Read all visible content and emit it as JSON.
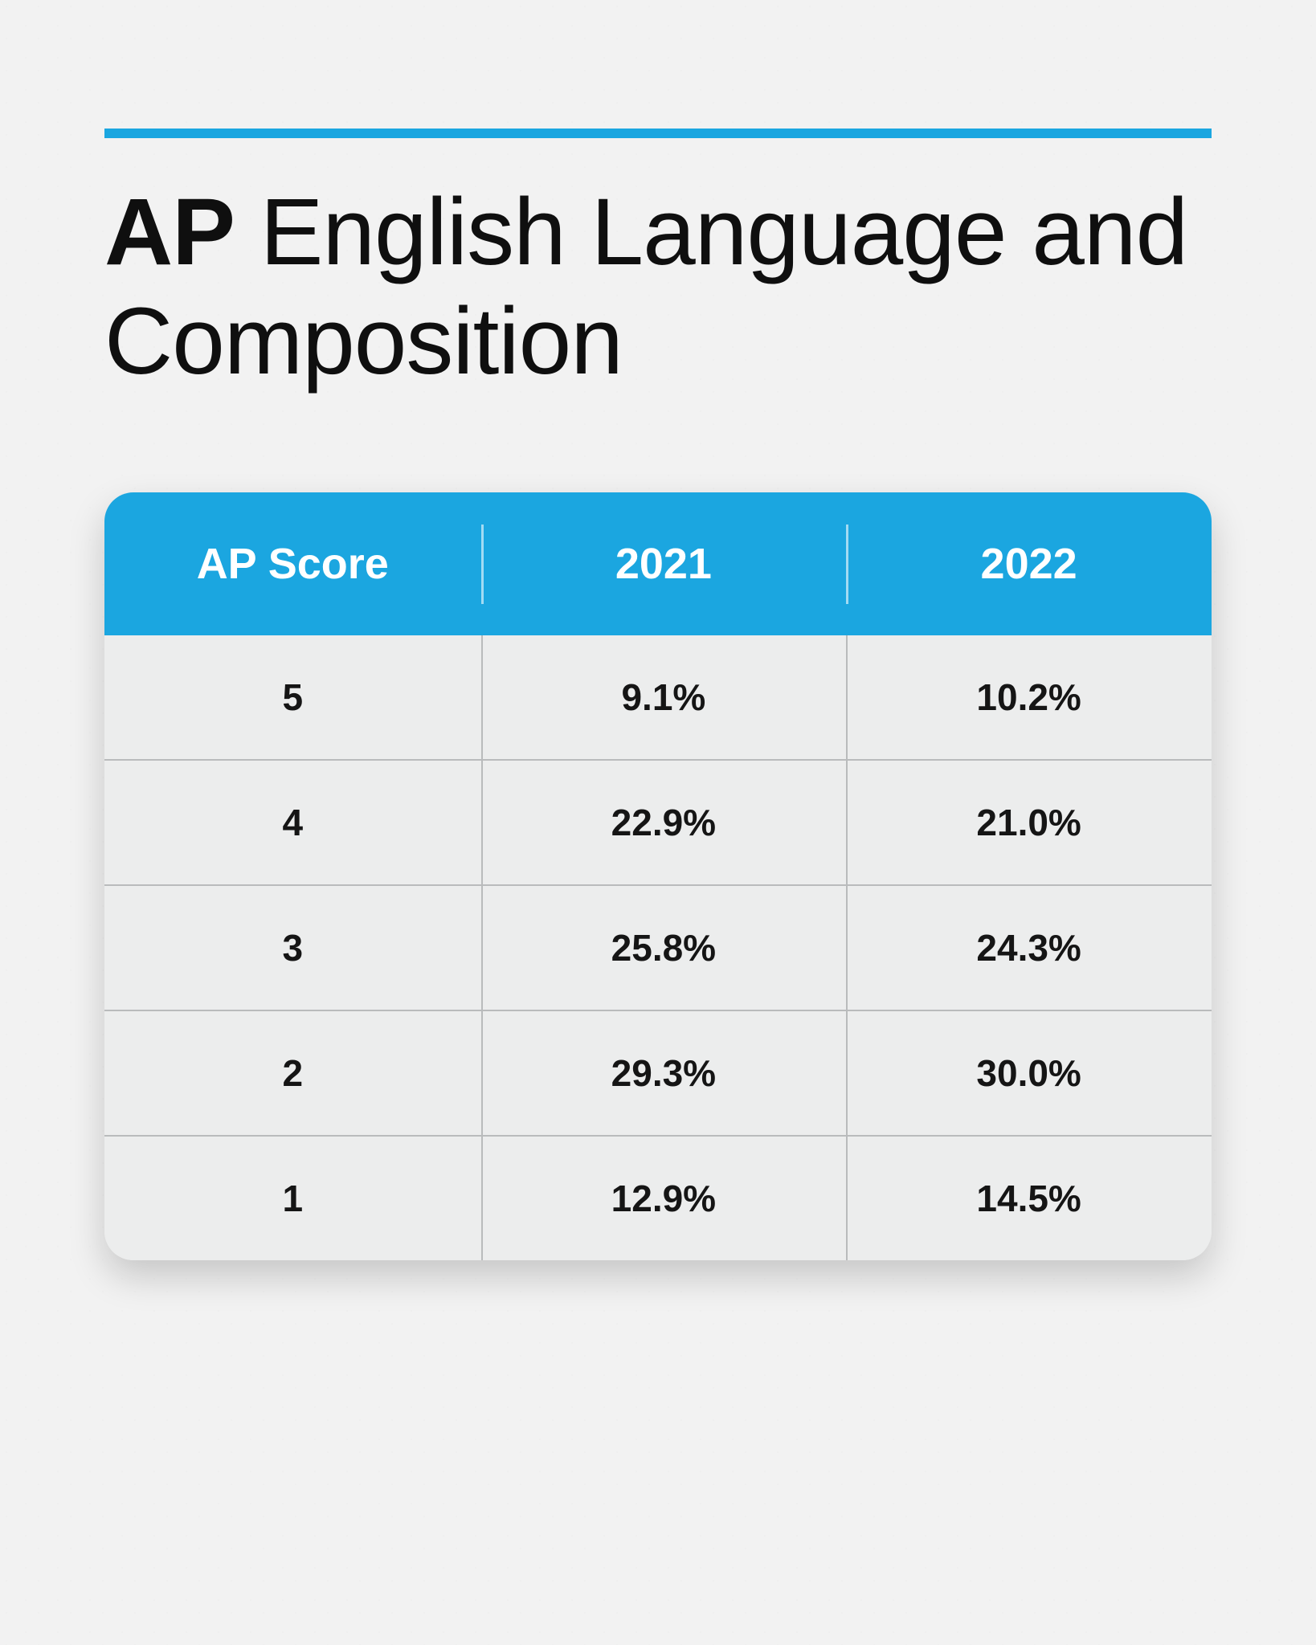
{
  "title": {
    "bold": "AP",
    "rest": " English Language and Composition"
  },
  "accent_color": "#1ba6e0",
  "background_color": "#f2f2f2",
  "table": {
    "header_bg": "#1ba6e0",
    "header_text_color": "#ffffff",
    "body_bg": "#eceded",
    "border_color": "#b9bbbc",
    "text_color": "#151515",
    "header_fontsize": 54,
    "cell_fontsize": 46,
    "border_radius": 36,
    "columns": [
      "AP Score",
      "2021",
      "2022"
    ],
    "column_widths_pct": [
      34,
      33,
      33
    ],
    "rows": [
      [
        "5",
        "9.1%",
        "10.2%"
      ],
      [
        "4",
        "22.9%",
        "21.0%"
      ],
      [
        "3",
        "25.8%",
        "24.3%"
      ],
      [
        "2",
        "29.3%",
        "30.0%"
      ],
      [
        "1",
        "12.9%",
        "14.5%"
      ]
    ]
  }
}
